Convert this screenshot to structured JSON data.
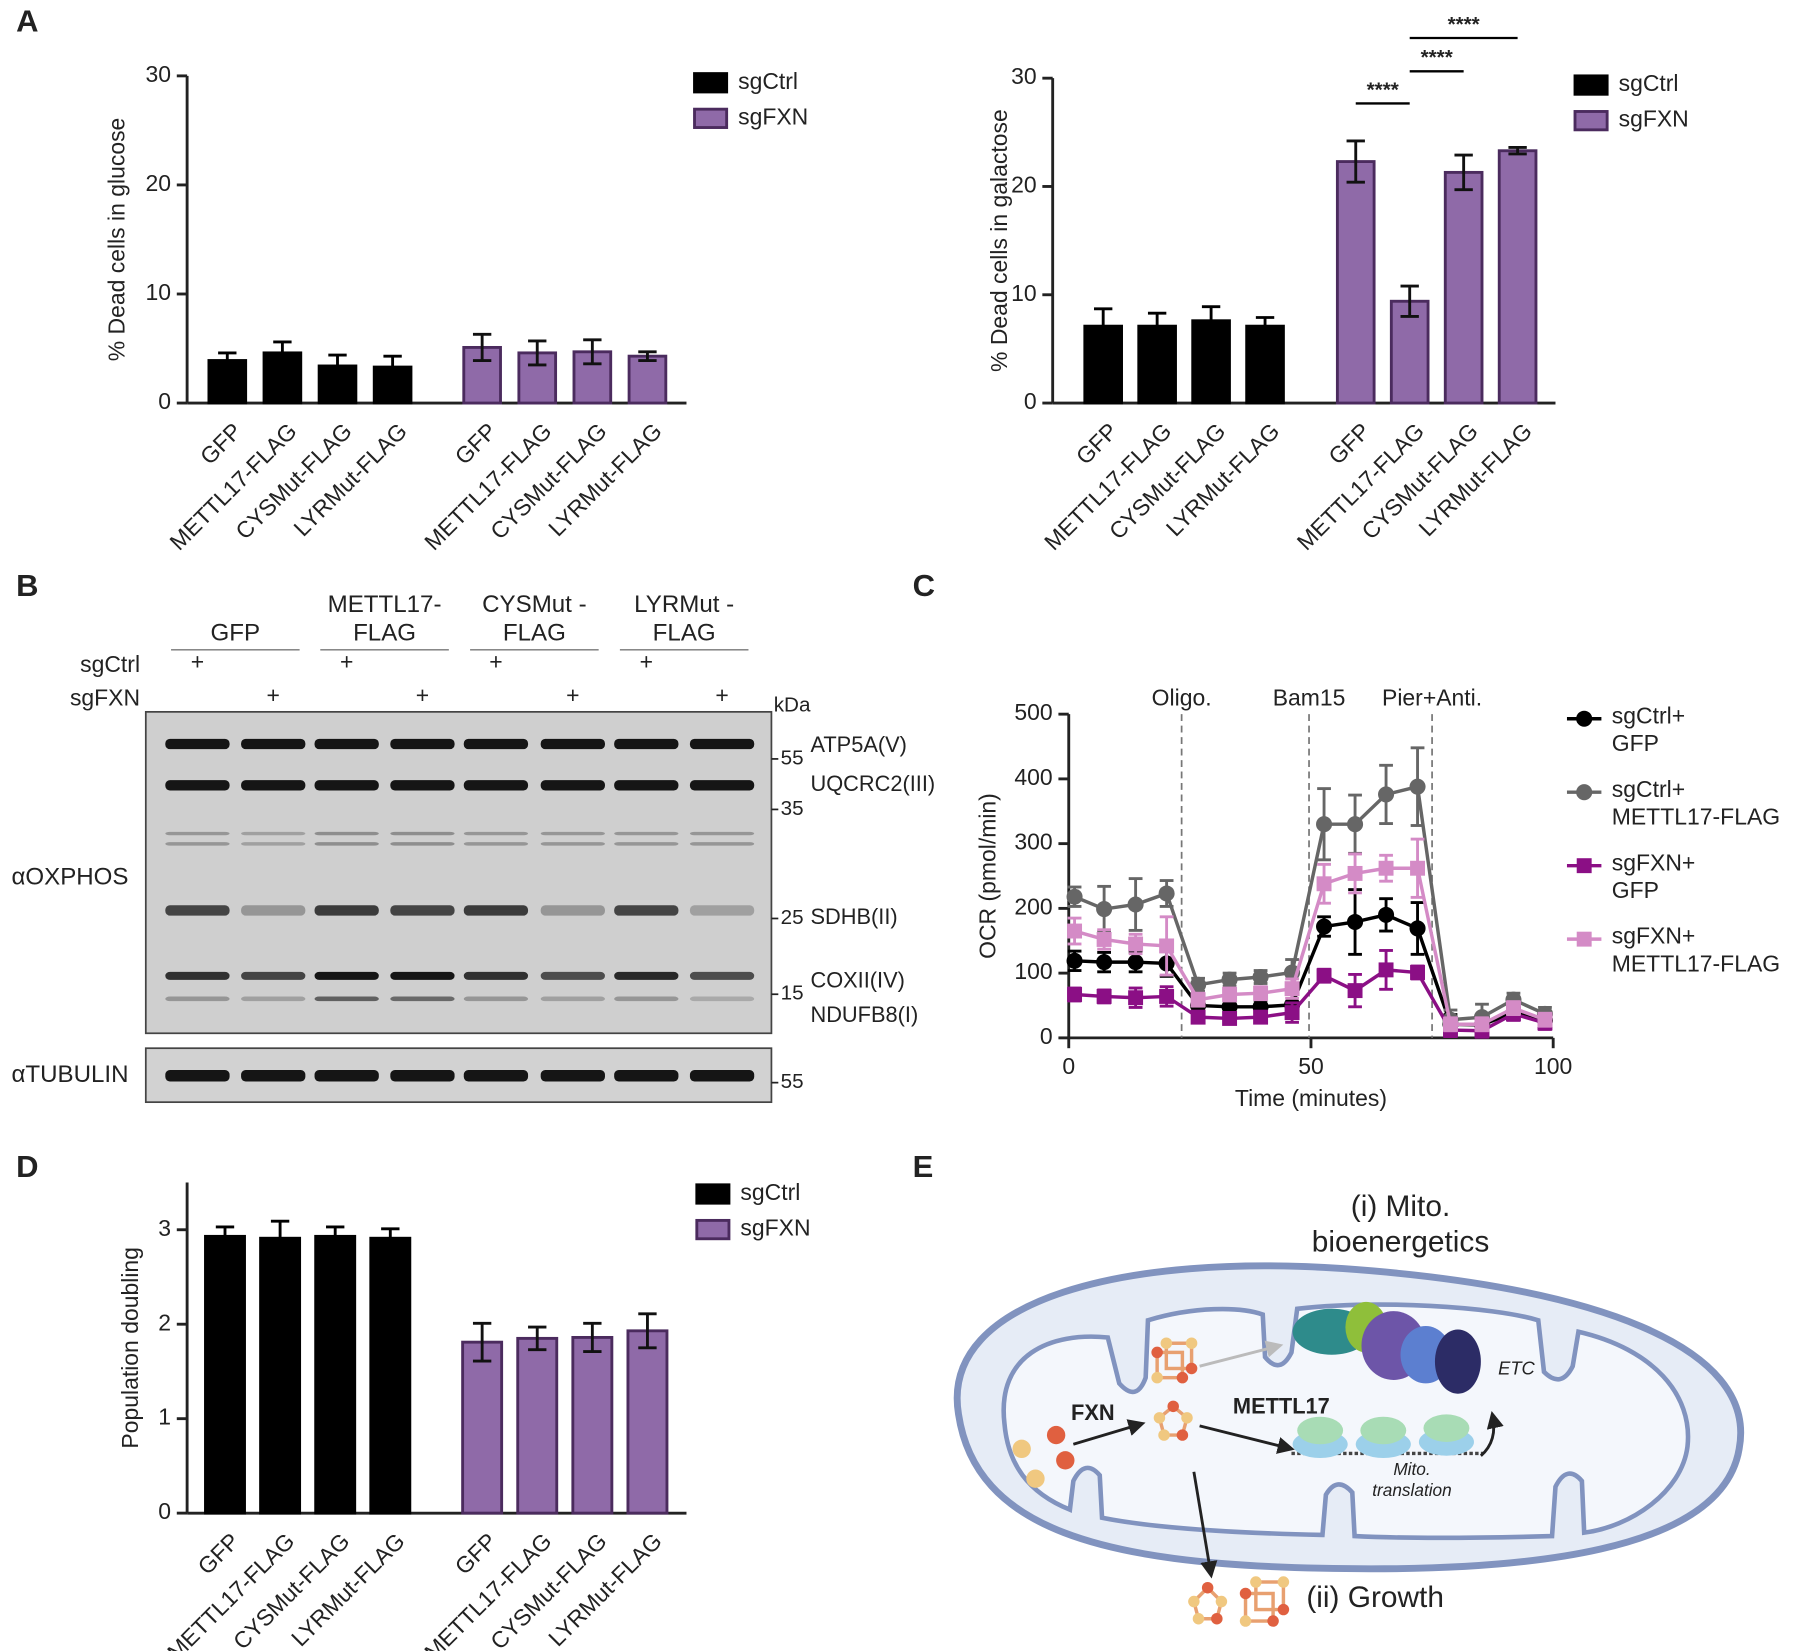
{
  "panel_labels": [
    "A",
    "B",
    "C",
    "D",
    "E"
  ],
  "chart_data": [
    {
      "type": "bar",
      "ylabel": "% Dead cells in glucose",
      "categories": [
        "GFP",
        "METTL17-FLAG",
        "CYSMut-FLAG",
        "LYRMut-FLAG"
      ],
      "series": [
        {
          "name": "sgCtrl",
          "color": "#000000",
          "edge": "#000000",
          "values": [
            3.9,
            4.6,
            3.4,
            3.3
          ],
          "errors": [
            0.7,
            1.0,
            1.0,
            1.0
          ]
        },
        {
          "name": "sgFXN",
          "color": "#8f6aa8",
          "edge": "#4b2b5e",
          "values": [
            5.1,
            4.6,
            4.7,
            4.3
          ],
          "errors": [
            1.2,
            1.1,
            1.1,
            0.4
          ]
        }
      ],
      "ylim": [
        0,
        30
      ],
      "yticks": [
        0,
        10,
        20,
        30
      ]
    },
    {
      "type": "bar",
      "ylabel": "% Dead cells in galactose",
      "categories": [
        "GFP",
        "METTL17-FLAG",
        "CYSMut-FLAG",
        "LYRMut-FLAG"
      ],
      "series": [
        {
          "name": "sgCtrl",
          "color": "#000000",
          "edge": "#000000",
          "values": [
            7.1,
            7.1,
            7.6,
            7.1
          ],
          "errors": [
            1.6,
            1.2,
            1.3,
            0.8
          ]
        },
        {
          "name": "sgFXN",
          "color": "#8f6aa8",
          "edge": "#4b2b5e",
          "values": [
            22.3,
            9.4,
            21.3,
            23.3
          ],
          "errors": [
            1.9,
            1.4,
            1.6,
            0.3
          ]
        }
      ],
      "significance": [
        {
          "series": 1,
          "from": 0,
          "to": 1,
          "label": "****"
        },
        {
          "series": 1,
          "from": 1,
          "to": 2,
          "label": "****"
        },
        {
          "series": 1,
          "from": 1,
          "to": 3,
          "label": "****"
        }
      ],
      "ylim": [
        0,
        30
      ],
      "yticks": [
        0,
        10,
        20,
        30
      ]
    },
    {
      "type": "line",
      "xlabel": "Time (minutes)",
      "ylabel": "OCR (pmol/min)",
      "x": [
        1.2,
        7.3,
        13.8,
        20.2,
        26.7,
        33.2,
        39.6,
        46.1,
        52.7,
        59.1,
        65.5,
        72,
        78.8,
        85.3,
        91.8,
        98.3
      ],
      "series": [
        {
          "name": "sgCtrl+\nGFP",
          "color": "#000000",
          "marker": "circle",
          "values": [
            119,
            117,
            117,
            115,
            50,
            48,
            48,
            51,
            172,
            179,
            190,
            169,
            21,
            20,
            39,
            27
          ],
          "errors": [
            15,
            15,
            15,
            20,
            10,
            10,
            10,
            20,
            15,
            50,
            25,
            40,
            15,
            10,
            10,
            10
          ]
        },
        {
          "name": "sgCtrl+\nMETTL17-FLAG",
          "color": "#666666",
          "marker": "circle",
          "values": [
            218,
            199,
            206,
            223,
            82,
            90,
            94,
            101,
            330,
            330,
            376,
            388,
            28,
            32,
            59,
            37
          ],
          "errors": [
            15,
            35,
            40,
            20,
            10,
            10,
            10,
            20,
            55,
            45,
            45,
            60,
            15,
            20,
            10,
            10
          ]
        },
        {
          "name": "sgFXN+\nGFP",
          "color": "#8b0f85",
          "marker": "square",
          "values": [
            67,
            64,
            62,
            64,
            32,
            30,
            32,
            39,
            96,
            73,
            105,
            101,
            12,
            11,
            37,
            23
          ],
          "errors": [
            10,
            10,
            15,
            15,
            5,
            5,
            5,
            15,
            10,
            25,
            30,
            10,
            10,
            10,
            10,
            10
          ]
        },
        {
          "name": "sgFXN+\nMETTL17-FLAG",
          "color": "#d48bc6",
          "marker": "square",
          "values": [
            165,
            152,
            145,
            142,
            59,
            67,
            69,
            76,
            238,
            254,
            262,
            262,
            21,
            21,
            46,
            28
          ],
          "errors": [
            20,
            15,
            15,
            45,
            10,
            10,
            10,
            15,
            30,
            30,
            20,
            45,
            10,
            10,
            10,
            10
          ]
        }
      ],
      "vlines": [
        {
          "x": 23.3,
          "label": "Oligo."
        },
        {
          "x": 49.6,
          "label": "Bam15"
        },
        {
          "x": 75,
          "label": "Pier+Anti."
        }
      ],
      "xlim": [
        0,
        100
      ],
      "ylim": [
        0,
        500
      ],
      "xticks": [
        0,
        50,
        100
      ],
      "yticks": [
        0,
        100,
        200,
        300,
        400,
        500
      ]
    },
    {
      "type": "bar",
      "ylabel": "Population doubling",
      "categories": [
        "GFP",
        "METTL17-FLAG",
        "CYSMut-FLAG",
        "LYRMut-FLAG"
      ],
      "series": [
        {
          "name": "sgCtrl",
          "color": "#000000",
          "edge": "#000000",
          "values": [
            2.93,
            2.91,
            2.93,
            2.91
          ],
          "errors": [
            0.1,
            0.18,
            0.1,
            0.1
          ]
        },
        {
          "name": "sgFXN",
          "color": "#8f6aa8",
          "edge": "#4b2b5e",
          "values": [
            1.81,
            1.85,
            1.86,
            1.93
          ],
          "errors": [
            0.2,
            0.12,
            0.15,
            0.18
          ]
        }
      ],
      "ylim": [
        0,
        3.5
      ],
      "yticks": [
        0,
        1,
        2,
        3
      ]
    }
  ],
  "blot": {
    "groups": [
      "GFP",
      "METTL17-\nFLAG",
      "CYSMut -\nFLAG",
      "LYRMut -\nFLAG"
    ],
    "rows": [
      {
        "label": "sgCtrl",
        "marks": [
          "+",
          "+",
          "+",
          "+"
        ]
      },
      {
        "label": "sgFXN",
        "marks": [
          "+",
          "+",
          "+",
          "+"
        ]
      }
    ],
    "unit": "kDa",
    "markers": [
      55,
      35,
      25,
      15
    ],
    "loading_marker": 55,
    "bands": [
      "ATP5A(V)",
      "UQCRC2(III)",
      "SDHB(II)",
      "COXII(IV)",
      "NDUFB8(I)"
    ],
    "antibodies": [
      "αOXPHOS",
      "αTUBULIN"
    ]
  },
  "diagram": {
    "title": "(i) Mito.\nbioenergetics",
    "fxn": "FXN",
    "mettl17": "METTL17",
    "etc": "ETC",
    "translation": "Mito.\ntranslation",
    "growth": "(ii) Growth"
  }
}
